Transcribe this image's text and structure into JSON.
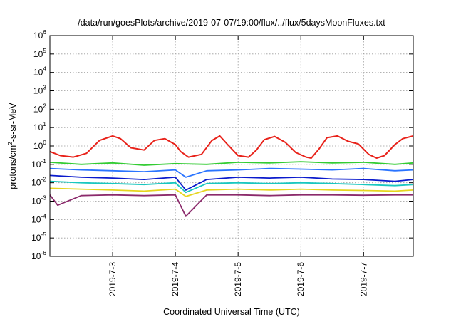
{
  "chart_data": {
    "type": "line",
    "title": "/data/run/goesPlots/archive/2019-07-07/19:00/flux/../flux/5daysMoonFluxes.txt",
    "xlabel": "Coordinated Universal Time (UTC)",
    "ylabel": {
      "base": "protons/cm",
      "sup": "2",
      "rest": "-s-sr-MeV"
    },
    "y_scale": "log",
    "ylim": [
      1e-06,
      1000000.0
    ],
    "xlim": [
      "2019-07-02T00:00",
      "2019-07-07T19:00"
    ],
    "y_ticks": [
      {
        "value": 1e-06,
        "base": "10",
        "exp": "-6"
      },
      {
        "value": 1e-05,
        "base": "10",
        "exp": "-5"
      },
      {
        "value": 0.0001,
        "base": "10",
        "exp": "-4"
      },
      {
        "value": 0.001,
        "base": "10",
        "exp": "-3"
      },
      {
        "value": 0.01,
        "base": "10",
        "exp": "-2"
      },
      {
        "value": 0.1,
        "base": "10",
        "exp": "-1"
      },
      {
        "value": 1.0,
        "base": "10",
        "exp": "0"
      },
      {
        "value": 10.0,
        "base": "10",
        "exp": "1"
      },
      {
        "value": 100.0,
        "base": "10",
        "exp": "2"
      },
      {
        "value": 1000.0,
        "base": "10",
        "exp": "3"
      },
      {
        "value": 10000.0,
        "base": "10",
        "exp": "4"
      },
      {
        "value": 100000.0,
        "base": "10",
        "exp": "5"
      },
      {
        "value": 1000000.0,
        "base": "10",
        "exp": "6"
      }
    ],
    "x_ticks": [
      {
        "value": "2019-07-03T00:00",
        "label": "2019-7-3"
      },
      {
        "value": "2019-07-04T00:00",
        "label": "2019-7-4"
      },
      {
        "value": "2019-07-05T00:00",
        "label": "2019-7-5"
      },
      {
        "value": "2019-07-06T00:00",
        "label": "2019-7-6"
      },
      {
        "value": "2019-07-07T00:00",
        "label": "2019-7-7"
      }
    ],
    "grid": true,
    "legend": "none",
    "series": [
      {
        "color": "#e8221a",
        "x": [
          "2019-07-02T00:00",
          "2019-07-02T04:00",
          "2019-07-02T09:00",
          "2019-07-02T14:00",
          "2019-07-02T19:00",
          "2019-07-03T00:00",
          "2019-07-03T03:00",
          "2019-07-03T07:00",
          "2019-07-03T12:00",
          "2019-07-03T16:00",
          "2019-07-03T20:00",
          "2019-07-04T00:00",
          "2019-07-04T02:00",
          "2019-07-04T05:00",
          "2019-07-04T10:00",
          "2019-07-04T14:00",
          "2019-07-04T17:00",
          "2019-07-04T20:00",
          "2019-07-05T00:00",
          "2019-07-05T04:00",
          "2019-07-05T07:00",
          "2019-07-05T10:00",
          "2019-07-05T14:00",
          "2019-07-05T18:00",
          "2019-07-05T22:00",
          "2019-07-06T02:00",
          "2019-07-06T04:00",
          "2019-07-06T07:00",
          "2019-07-06T10:00",
          "2019-07-06T14:00",
          "2019-07-06T18:00",
          "2019-07-06T22:00",
          "2019-07-07T02:00",
          "2019-07-07T05:00",
          "2019-07-07T08:00",
          "2019-07-07T12:00",
          "2019-07-07T15:00",
          "2019-07-07T19:00"
        ],
        "values": [
          0.5,
          0.3,
          0.25,
          0.4,
          2,
          3.5,
          2.5,
          0.8,
          0.6,
          2,
          2.5,
          1.2,
          0.5,
          0.25,
          0.35,
          2,
          3.5,
          1.2,
          0.3,
          0.25,
          0.6,
          2.2,
          3.3,
          1.6,
          0.45,
          0.25,
          0.22,
          0.7,
          2.8,
          3.5,
          1.8,
          1.3,
          0.35,
          0.22,
          0.3,
          1.2,
          2.5,
          3.5
        ]
      },
      {
        "color": "#33cc33",
        "x": [
          "2019-07-02T00:00",
          "2019-07-02T12:00",
          "2019-07-03T00:00",
          "2019-07-03T12:00",
          "2019-07-04T00:00",
          "2019-07-04T12:00",
          "2019-07-05T00:00",
          "2019-07-05T12:00",
          "2019-07-06T00:00",
          "2019-07-06T12:00",
          "2019-07-07T00:00",
          "2019-07-07T12:00",
          "2019-07-07T19:00"
        ],
        "values": [
          0.13,
          0.1,
          0.12,
          0.09,
          0.11,
          0.1,
          0.13,
          0.12,
          0.14,
          0.12,
          0.13,
          0.1,
          0.12
        ]
      },
      {
        "color": "#2a74ff",
        "x": [
          "2019-07-02T00:00",
          "2019-07-02T12:00",
          "2019-07-03T00:00",
          "2019-07-03T12:00",
          "2019-07-04T00:00",
          "2019-07-04T04:00",
          "2019-07-04T12:00",
          "2019-07-05T00:00",
          "2019-07-05T12:00",
          "2019-07-06T00:00",
          "2019-07-06T12:00",
          "2019-07-07T00:00",
          "2019-07-07T12:00",
          "2019-07-07T19:00"
        ],
        "values": [
          0.06,
          0.05,
          0.045,
          0.04,
          0.05,
          0.02,
          0.045,
          0.05,
          0.06,
          0.055,
          0.05,
          0.06,
          0.045,
          0.05
        ]
      },
      {
        "color": "#0a1acc",
        "x": [
          "2019-07-02T00:00",
          "2019-07-02T12:00",
          "2019-07-03T00:00",
          "2019-07-03T12:00",
          "2019-07-04T00:00",
          "2019-07-04T04:00",
          "2019-07-04T12:00",
          "2019-07-05T00:00",
          "2019-07-05T12:00",
          "2019-07-06T00:00",
          "2019-07-06T12:00",
          "2019-07-07T00:00",
          "2019-07-07T12:00",
          "2019-07-07T19:00"
        ],
        "values": [
          0.025,
          0.02,
          0.018,
          0.015,
          0.02,
          0.004,
          0.015,
          0.02,
          0.018,
          0.02,
          0.016,
          0.015,
          0.012,
          0.015
        ]
      },
      {
        "color": "#19c7c0",
        "x": [
          "2019-07-02T00:00",
          "2019-07-02T12:00",
          "2019-07-03T00:00",
          "2019-07-03T12:00",
          "2019-07-04T00:00",
          "2019-07-04T04:00",
          "2019-07-04T12:00",
          "2019-07-05T00:00",
          "2019-07-05T12:00",
          "2019-07-06T00:00",
          "2019-07-06T12:00",
          "2019-07-07T00:00",
          "2019-07-07T12:00",
          "2019-07-07T19:00"
        ],
        "values": [
          0.012,
          0.01,
          0.009,
          0.008,
          0.01,
          0.003,
          0.009,
          0.01,
          0.009,
          0.01,
          0.009,
          0.008,
          0.007,
          0.008
        ]
      },
      {
        "color": "#e6d51e",
        "x": [
          "2019-07-02T00:00",
          "2019-07-02T12:00",
          "2019-07-03T00:00",
          "2019-07-03T12:00",
          "2019-07-04T00:00",
          "2019-07-04T04:00",
          "2019-07-04T12:00",
          "2019-07-05T00:00",
          "2019-07-05T12:00",
          "2019-07-06T00:00",
          "2019-07-06T12:00",
          "2019-07-07T00:00",
          "2019-07-07T12:00",
          "2019-07-07T19:00"
        ],
        "values": [
          0.005,
          0.0045,
          0.004,
          0.0035,
          0.0045,
          0.0018,
          0.004,
          0.0045,
          0.004,
          0.0045,
          0.004,
          0.0038,
          0.0035,
          0.004
        ]
      },
      {
        "color": "#8b2a6b",
        "x": [
          "2019-07-02T00:00",
          "2019-07-02T03:00",
          "2019-07-02T12:00",
          "2019-07-03T00:00",
          "2019-07-03T12:00",
          "2019-07-04T00:00",
          "2019-07-04T04:00",
          "2019-07-04T12:00",
          "2019-07-05T00:00",
          "2019-07-05T12:00",
          "2019-07-06T00:00",
          "2019-07-06T12:00",
          "2019-07-07T00:00",
          "2019-07-07T12:00",
          "2019-07-07T19:00"
        ],
        "values": [
          0.0022,
          0.0006,
          0.002,
          0.0022,
          0.002,
          0.0022,
          0.00015,
          0.0022,
          0.0022,
          0.002,
          0.0022,
          0.0022,
          0.0021,
          0.0022,
          0.0022
        ]
      }
    ]
  }
}
